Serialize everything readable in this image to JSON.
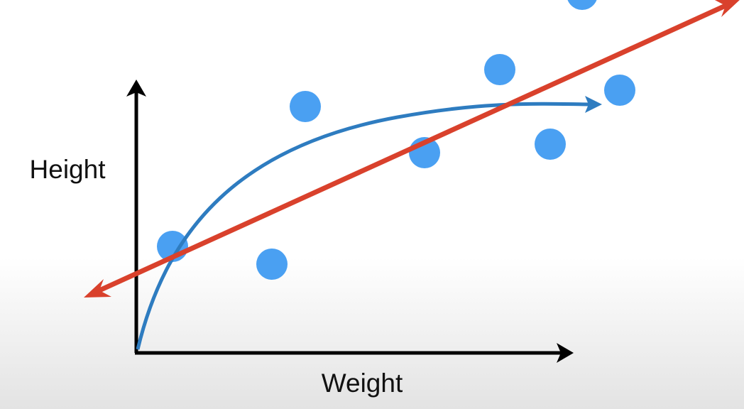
{
  "axes": {
    "y_label": "Height",
    "x_label": "Weight"
  }
}
